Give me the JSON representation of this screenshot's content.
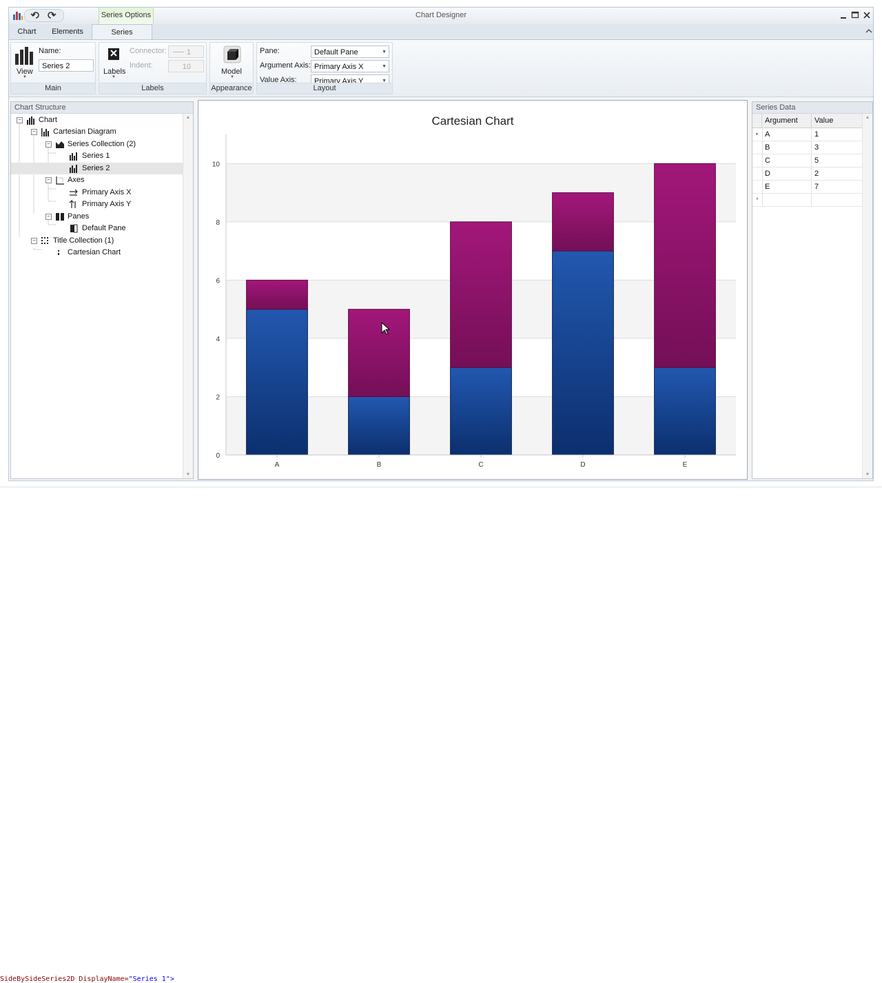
{
  "window": {
    "title": "Chart Designer",
    "context_tab": "Series Options"
  },
  "tabs": [
    {
      "label": "Chart"
    },
    {
      "label": "Elements"
    },
    {
      "label": "Series",
      "active": true
    }
  ],
  "ribbon": {
    "main": {
      "group_label": "Main",
      "view_label": "View",
      "name_label": "Name:",
      "name_value": "Series 2"
    },
    "labels": {
      "group_label": "Labels",
      "labels_button": "Labels",
      "connector_label": "Connector:",
      "connector_value": "1",
      "indent_label": "Indent:",
      "indent_value": "10"
    },
    "appearance": {
      "group_label": "Appearance",
      "model_label": "Model"
    },
    "layout": {
      "group_label": "Layout",
      "pane_label": "Pane:",
      "pane_value": "Default Pane",
      "argument_axis_label": "Argument Axis:",
      "argument_axis_value": "Primary Axis X",
      "value_axis_label": "Value Axis:",
      "value_axis_value": "Primary Axis Y"
    }
  },
  "structure": {
    "title": "Chart Structure",
    "nodes": {
      "chart": "Chart",
      "diagram": "Cartesian Diagram",
      "series_collection": "Series Collection (2)",
      "series1": "Series 1",
      "series2": "Series 2",
      "axes": "Axes",
      "axis_x": "Primary Axis X",
      "axis_y": "Primary Axis Y",
      "panes": "Panes",
      "default_pane": "Default Pane",
      "title_collection": "Title Collection (1)",
      "title_item": "Cartesian Chart"
    }
  },
  "series_data": {
    "title": "Series Data",
    "columns": [
      "Argument",
      "Value"
    ],
    "rows": [
      {
        "argument": "A",
        "value": "1"
      },
      {
        "argument": "B",
        "value": "3"
      },
      {
        "argument": "C",
        "value": "5"
      },
      {
        "argument": "D",
        "value": "2"
      },
      {
        "argument": "E",
        "value": "7"
      }
    ],
    "new_row_marker": "*"
  },
  "chart_data": {
    "type": "bar",
    "stacked": true,
    "title": "Cartesian Chart",
    "categories": [
      "A",
      "B",
      "C",
      "D",
      "E"
    ],
    "series": [
      {
        "name": "Series 1",
        "color": "#1a4a9c",
        "values": [
          5,
          2,
          3,
          7,
          3
        ]
      },
      {
        "name": "Series 2",
        "color": "#9c1670",
        "values": [
          1,
          3,
          5,
          2,
          7
        ]
      }
    ],
    "y_ticks": [
      0,
      2,
      4,
      6,
      8,
      10
    ],
    "ylim": [
      0,
      11
    ],
    "grid": true
  },
  "background_code": {
    "line": "SideBySideSeries2D DisplayName=",
    "value": "\"Series 1\">"
  },
  "colors": {
    "accent_frame": "#b9c9da",
    "series1": "#1a4a9c",
    "series2": "#9c1670"
  }
}
